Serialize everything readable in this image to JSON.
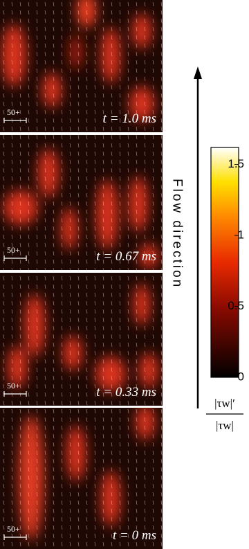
{
  "panels": [
    {
      "label": "t = 1.0 ms",
      "scale": "50+"
    },
    {
      "label": "t = 0.67 ms",
      "scale": "50+"
    },
    {
      "label": "t = 0.33 ms",
      "scale": "50+"
    },
    {
      "label": "t = 0 ms",
      "scale": "50+"
    }
  ],
  "flow_label": "Flow direction",
  "colorbar": {
    "lim": [
      0,
      1.62
    ],
    "ticks": [
      0,
      0.5,
      1,
      1.5
    ],
    "label_numerator": "|τw|′",
    "label_denominator": "|τw|"
  }
}
